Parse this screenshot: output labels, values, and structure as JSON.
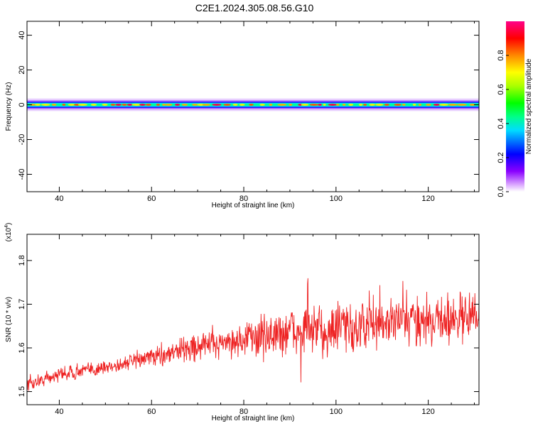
{
  "title": "C2E1.2024.305.08.56.G10",
  "colors": {
    "snr_line": "#ee2222",
    "axis": "#000000"
  },
  "chart_data": [
    {
      "type": "heatmap",
      "xlabel": "Height of straight line (km)",
      "ylabel": "Frequency (Hz)",
      "xlim": [
        33,
        131
      ],
      "ylim": [
        -50,
        48
      ],
      "xticks": [
        "40",
        "60",
        "80",
        "100",
        "120"
      ],
      "yticks": [
        "-40",
        "-20",
        "0",
        "20",
        "40"
      ],
      "xtick_values": [
        40,
        60,
        80,
        100,
        120
      ],
      "ytick_values": [
        -40,
        -20,
        0,
        20,
        40
      ],
      "band_center_hz": 0,
      "band_halfwidth_hz": 3,
      "colorbar": {
        "label": "Normalized spectral amplitude",
        "range": [
          0,
          1
        ],
        "ticks": [
          "0.0",
          "0.2",
          "0.4",
          "0.6",
          "0.8"
        ],
        "tick_values": [
          0.0,
          0.2,
          0.4,
          0.6,
          0.8
        ]
      }
    },
    {
      "type": "line",
      "xlabel": "Height of straight line (km)",
      "ylabel": "SNR (10 * v/v)",
      "yscale_label": "(x10",
      "yscale_exp": "4",
      "scale_suffix": ")",
      "xlim": [
        33,
        131
      ],
      "ylim": [
        1.47,
        1.86
      ],
      "xticks": [
        "40",
        "60",
        "80",
        "100",
        "120"
      ],
      "yticks": [
        "1.5",
        "1.6",
        "1.7",
        "1.8"
      ],
      "xtick_values": [
        40,
        60,
        80,
        100,
        120
      ],
      "ytick_values": [
        1.5,
        1.6,
        1.7,
        1.8
      ],
      "trend": {
        "x": [
          33,
          40,
          50,
          60,
          70,
          80,
          90,
          100,
          110,
          120,
          131
        ],
        "y": [
          1.515,
          1.54,
          1.555,
          1.58,
          1.605,
          1.62,
          1.635,
          1.645,
          1.655,
          1.665,
          1.67
        ]
      },
      "noise_amplitude": {
        "x": [
          33,
          50,
          60,
          70,
          80,
          90,
          100,
          110,
          120,
          131
        ],
        "y": [
          0.025,
          0.025,
          0.03,
          0.045,
          0.06,
          0.08,
          0.09,
          0.085,
          0.085,
          0.08
        ]
      },
      "n_points": 1100
    }
  ]
}
